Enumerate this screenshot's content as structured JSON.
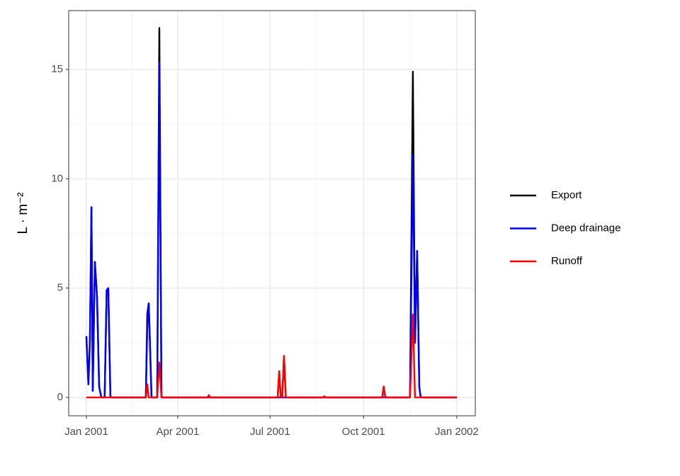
{
  "chart_data": {
    "type": "line",
    "ylabel": "L · m⁻²",
    "x": [
      0,
      2,
      3.5,
      5,
      6.3,
      8.4,
      10.5,
      12.6,
      14.7,
      18,
      20,
      21.6,
      23.7,
      57,
      58.6,
      60,
      61.4,
      62,
      64.2,
      69.8,
      71.9,
      74,
      119.5,
      120.7,
      122,
      188.5,
      190,
      191.5,
      193,
      194.7,
      196.5,
      233.5,
      234.5,
      235.5,
      291.5,
      293,
      294.5,
      318.9,
      321.7,
      323.8,
      325.9,
      328,
      329.4,
      365
    ],
    "series": [
      {
        "name": "Export",
        "color": "#000000",
        "values": [
          2.8,
          0.6,
          2.6,
          8.7,
          0.3,
          6.2,
          4.6,
          0.5,
          0,
          0,
          4.9,
          5.0,
          0,
          0,
          0,
          3.8,
          4.3,
          3.5,
          0,
          0,
          16.9,
          0,
          0,
          0.1,
          0,
          0,
          1.2,
          0,
          0,
          1.9,
          0,
          0,
          0.05,
          0,
          0,
          0.5,
          0,
          0,
          14.9,
          2.5,
          6.7,
          0.5,
          0,
          0
        ]
      },
      {
        "name": "Deep drainage",
        "color": "#0000ff",
        "values": [
          2.8,
          0.6,
          2.6,
          8.7,
          0.3,
          6.2,
          4.6,
          0.5,
          0,
          0,
          4.9,
          5.0,
          0,
          0,
          0,
          3.2,
          4.3,
          3.5,
          0,
          0,
          15.3,
          0,
          0,
          0,
          0,
          0,
          0,
          0,
          0,
          0,
          0,
          0,
          0,
          0,
          0,
          0,
          0,
          0,
          11.1,
          2.5,
          6.7,
          0.5,
          0,
          0
        ]
      },
      {
        "name": "Runoff",
        "color": "#ff0000",
        "values": [
          0,
          0,
          0,
          0,
          0,
          0,
          0,
          0,
          0,
          0,
          0,
          0,
          0,
          0,
          0,
          0.6,
          0,
          0,
          0,
          0,
          1.6,
          0,
          0,
          0.1,
          0,
          0,
          1.2,
          0,
          0,
          1.9,
          0,
          0,
          0.05,
          0,
          0,
          0.5,
          0,
          0,
          3.8,
          0,
          0,
          0,
          0,
          0
        ]
      }
    ],
    "xlim": [
      -17.4,
      383.2
    ],
    "xticks": [
      {
        "value": 0,
        "label": "Jan 2001"
      },
      {
        "value": 90,
        "label": "Apr 2001"
      },
      {
        "value": 181,
        "label": "Jul 2001"
      },
      {
        "value": 273,
        "label": "Oct 2001"
      },
      {
        "value": 365,
        "label": "Jan 2002"
      }
    ],
    "x_minor_ticks": [
      45,
      135.5,
      227,
      319
    ],
    "ylim": [
      -0.84,
      17.69
    ],
    "yticks": [
      0,
      5,
      10,
      15
    ],
    "y_minor_ticks": [
      2.5,
      7.5,
      12.5
    ],
    "grid": true,
    "legend": "right"
  }
}
